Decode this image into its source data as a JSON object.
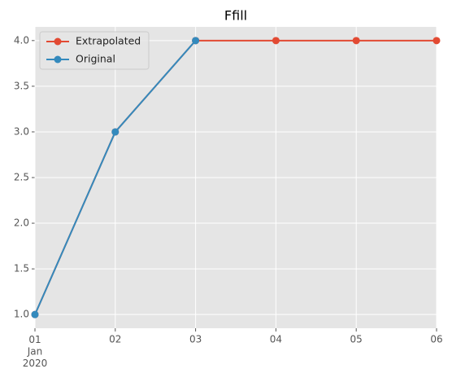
{
  "chart_data": {
    "type": "line",
    "title": "Ffill",
    "x": [
      "2020-01-01",
      "2020-01-02",
      "2020-01-03",
      "2020-01-04",
      "2020-01-05",
      "2020-01-06"
    ],
    "series": [
      {
        "name": "Extrapolated",
        "color": "#E24A33",
        "values": [
          1,
          3,
          4,
          4,
          4,
          4
        ]
      },
      {
        "name": "Original",
        "color": "#348ABD",
        "values": [
          1,
          3,
          4,
          null,
          null,
          null
        ]
      }
    ],
    "xlim": [
      "2020-01-01",
      "2020-01-06"
    ],
    "xticks": [
      {
        "value": "2020-01-01",
        "label": "01\nJan\n2020"
      },
      {
        "value": "2020-01-02",
        "label": "02"
      },
      {
        "value": "2020-01-03",
        "label": "03"
      },
      {
        "value": "2020-01-04",
        "label": "04"
      },
      {
        "value": "2020-01-05",
        "label": "05"
      },
      {
        "value": "2020-01-06",
        "label": "06"
      }
    ],
    "ylim": [
      0.85,
      4.15
    ],
    "yticks": [
      {
        "value": 1,
        "label": "1.0"
      },
      {
        "value": 1.5,
        "label": "1.5"
      },
      {
        "value": 2,
        "label": "2.0"
      },
      {
        "value": 2.5,
        "label": "2.5"
      },
      {
        "value": 3,
        "label": "3.0"
      },
      {
        "value": 3.5,
        "label": "3.5"
      },
      {
        "value": 4,
        "label": "4.0"
      }
    ],
    "grid": true,
    "legend": "upper left"
  }
}
